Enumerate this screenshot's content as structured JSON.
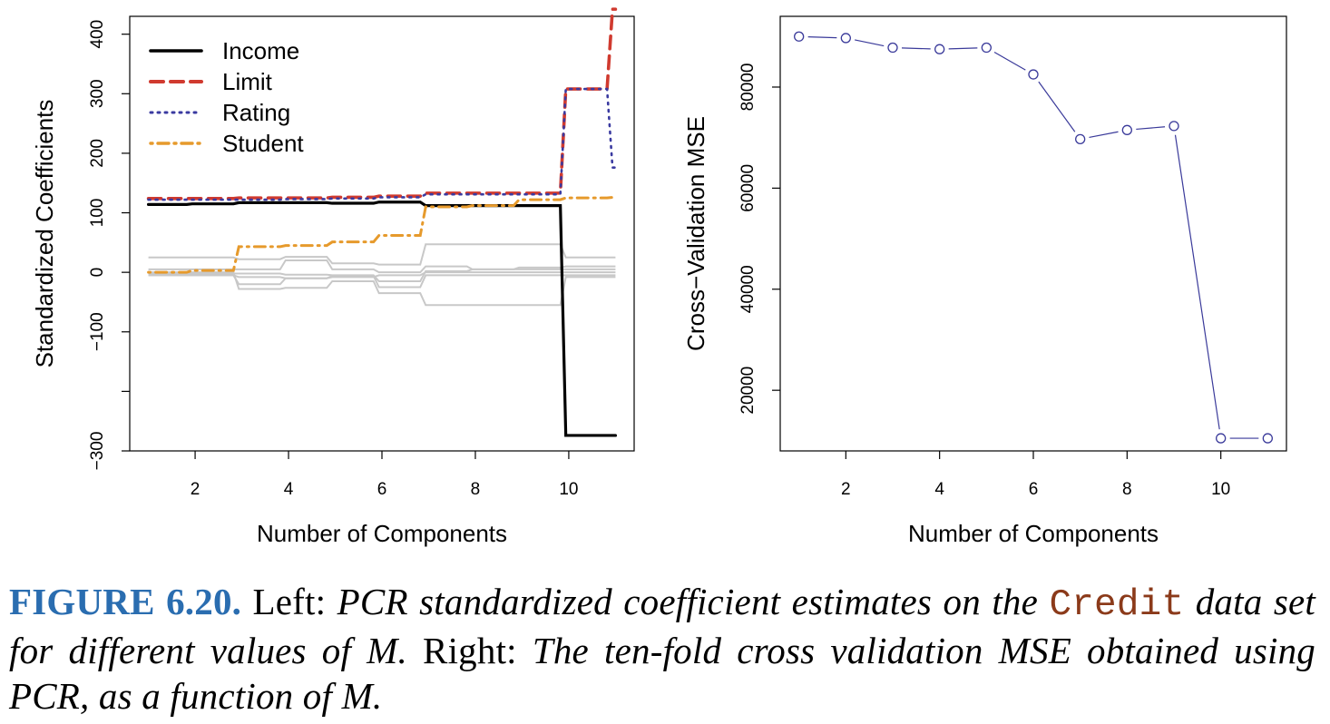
{
  "chart_data": [
    {
      "type": "line",
      "xlabel": "Number of Components",
      "ylabel": "Standardized Coefficients",
      "xlim": [
        0.6,
        11.4
      ],
      "ylim": [
        -300,
        430
      ],
      "xticks": [
        2,
        4,
        6,
        8,
        10
      ],
      "yticks": [
        -300,
        -100,
        0,
        100,
        200,
        300,
        400
      ],
      "ytick_labels": [
        "−300",
        "−100",
        "0",
        "100",
        "200",
        "300",
        "400"
      ],
      "xtick_labels": [
        "2",
        "4",
        "6",
        "8",
        "10"
      ],
      "legend_position": "top-left",
      "x": [
        1,
        2,
        3,
        4,
        5,
        6,
        7,
        8,
        9,
        10,
        11
      ],
      "series": [
        {
          "name": "Income",
          "color": "#000000",
          "style": "solid",
          "values": [
            114,
            115,
            117,
            117,
            116,
            118,
            112,
            112,
            112,
            -274,
            -274
          ]
        },
        {
          "name": "Limit",
          "color": "#d03a2f",
          "style": "dashed",
          "values": [
            124,
            124,
            125,
            125,
            126,
            128,
            133,
            133,
            133,
            308,
            442
          ]
        },
        {
          "name": "Rating",
          "color": "#3a3aa0",
          "style": "dotted",
          "values": [
            122,
            122,
            122,
            123,
            124,
            126,
            131,
            131,
            131,
            308,
            176
          ]
        },
        {
          "name": "Student",
          "color": "#e69a2c",
          "style": "dashdot",
          "values": [
            0,
            3,
            43,
            45,
            51,
            62,
            110,
            112,
            122,
            125,
            126
          ]
        }
      ],
      "gray_series_color": "#c8c8c8",
      "gray_series": [
        [
          25,
          25,
          22,
          26,
          15,
          13,
          47,
          47,
          47,
          25,
          25
        ],
        [
          5,
          5,
          5,
          20,
          5,
          0,
          10,
          5,
          5,
          5,
          5
        ],
        [
          -2,
          -2,
          -2,
          -4,
          -5,
          -15,
          2,
          5,
          8,
          10,
          10
        ],
        [
          -5,
          -5,
          -20,
          -10,
          -6,
          -25,
          -5,
          -5,
          -5,
          -5,
          -5
        ],
        [
          0,
          0,
          -28,
          -26,
          -15,
          -35,
          -55,
          -55,
          -55,
          -8,
          -8
        ],
        [
          -5,
          -5,
          -8,
          -10,
          -8,
          -5,
          0,
          0,
          0,
          0,
          0
        ]
      ]
    },
    {
      "type": "line",
      "xlabel": "Number of Components",
      "ylabel": "Cross−Validation MSE",
      "xlim": [
        0.6,
        11.4
      ],
      "ylim": [
        8000,
        94000
      ],
      "xticks": [
        2,
        4,
        6,
        8,
        10
      ],
      "xtick_labels": [
        "2",
        "4",
        "6",
        "8",
        "10"
      ],
      "yticks": [
        20000,
        40000,
        60000,
        80000
      ],
      "ytick_labels": [
        "20000",
        "40000",
        "60000",
        "80000"
      ],
      "color": "#3a3a9a",
      "marker": "open-circle",
      "x": [
        1,
        2,
        3,
        4,
        5,
        6,
        7,
        8,
        9,
        10,
        11
      ],
      "values": [
        90000,
        89700,
        87800,
        87500,
        87800,
        82500,
        69700,
        71500,
        72300,
        10500,
        10500
      ]
    }
  ],
  "caption": {
    "label": "FIGURE 6.20.",
    "left_word": "Left:",
    "left_text": "PCR standardized coefficient estimates on the",
    "code": "Credit",
    "left_text2": "data set for different values of",
    "m1": "M",
    "period": ".",
    "right_word": "Right:",
    "right_text": "The ten-fold cross validation MSE obtained using PCR, as a function of",
    "m2": "M",
    "end": "."
  }
}
